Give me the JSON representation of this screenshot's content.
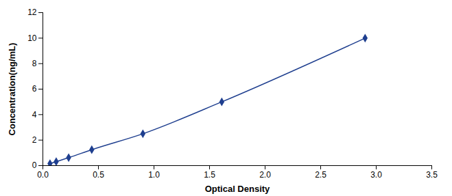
{
  "chart_data": {
    "type": "line",
    "x_label": "Optical Density",
    "y_label": "Concentration(ng/mL)",
    "x": [
      0.064,
      0.12,
      0.232,
      0.44,
      0.9,
      1.61,
      2.9
    ],
    "values": [
      0.156,
      0.312,
      0.625,
      1.25,
      2.5,
      5,
      10
    ],
    "color": "#1f3f8f",
    "marker": "diamond",
    "xlim": [
      0,
      3.5
    ],
    "xticks": [
      0,
      0.5,
      1,
      1.5,
      2,
      2.5,
      3,
      3.5
    ],
    "ylim": [
      0,
      12
    ],
    "yticks": [
      0,
      2,
      4,
      6,
      8,
      10,
      12
    ],
    "grid": false
  }
}
